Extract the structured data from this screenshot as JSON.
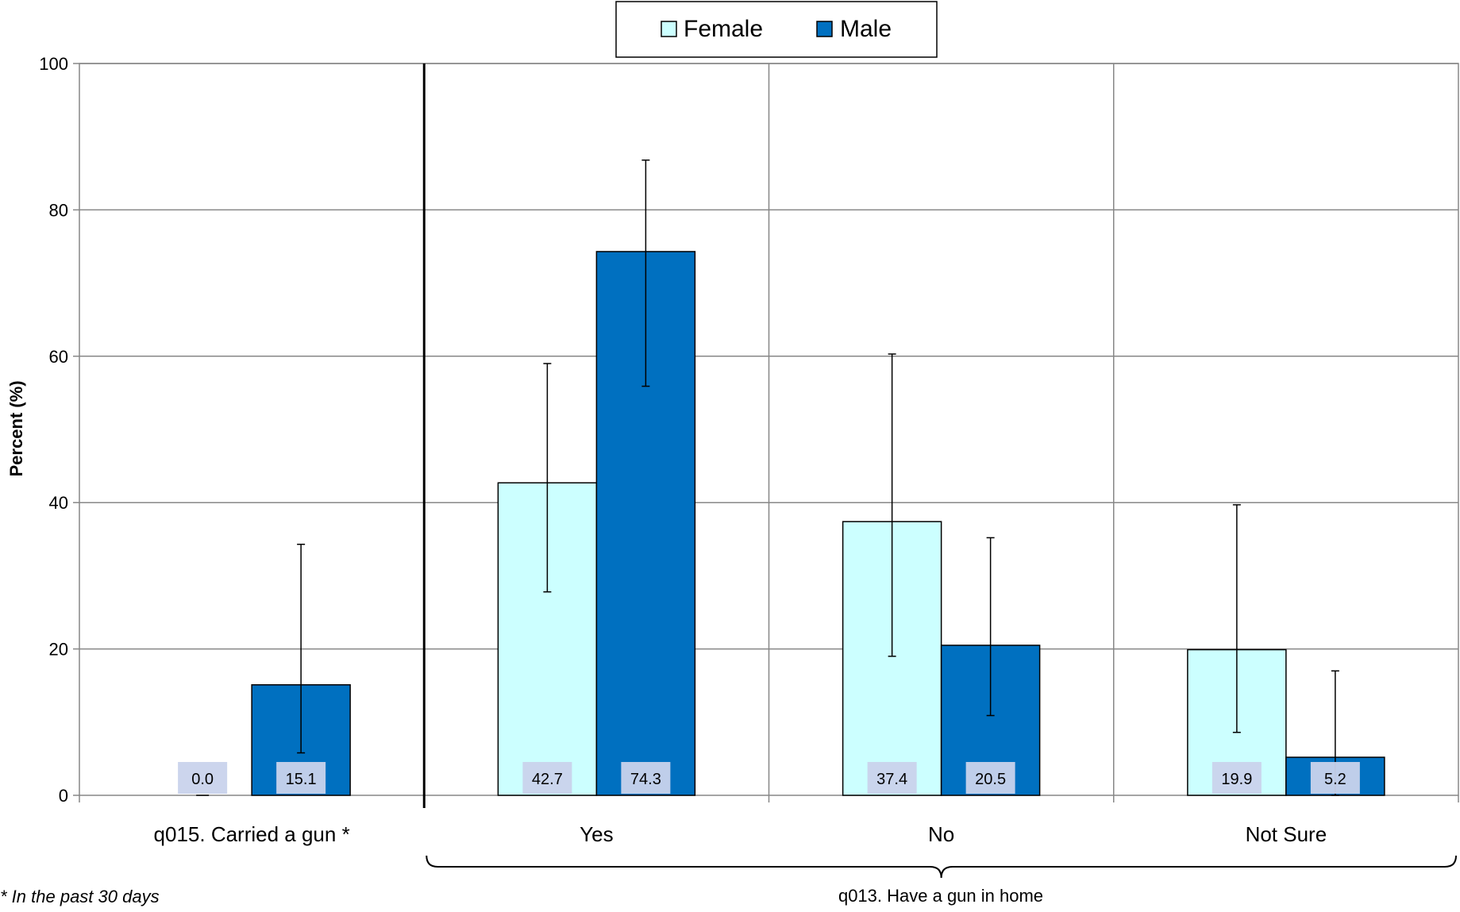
{
  "chart_data": {
    "type": "bar",
    "ylabel": "Percent (%)",
    "ylim": [
      0,
      100
    ],
    "yticks": [
      0,
      20,
      40,
      60,
      80,
      100
    ],
    "grid": true,
    "legend_position": "top-center",
    "categories": [
      "q015. Carried a gun *",
      "Yes",
      "No",
      "Not Sure"
    ],
    "group_label": "q013. Have a gun in home",
    "series": [
      {
        "name": "Female",
        "color": "#ccffff",
        "values": [
          0.0,
          42.7,
          37.4,
          19.9
        ],
        "labels": [
          "0.0",
          "42.7",
          "37.4",
          "19.9"
        ],
        "err_low": [
          0.0,
          27.8,
          19.0,
          8.6
        ],
        "err_high": [
          0.0,
          59.0,
          60.3,
          39.7
        ]
      },
      {
        "name": "Male",
        "color": "#0070c0",
        "values": [
          15.1,
          74.3,
          20.5,
          5.2
        ],
        "labels": [
          "15.1",
          "74.3",
          "20.5",
          "5.2"
        ],
        "err_low": [
          5.8,
          55.9,
          10.9,
          0.0
        ],
        "err_high": [
          34.3,
          86.8,
          35.2,
          17.0
        ]
      }
    ],
    "footnote": "* In the past 30 days"
  }
}
